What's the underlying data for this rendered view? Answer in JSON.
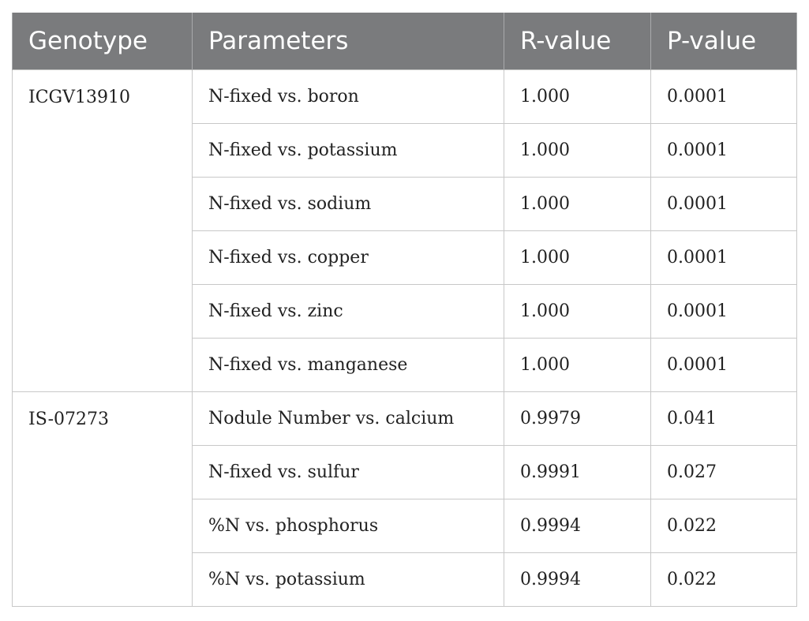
{
  "table": {
    "headers": [
      "Genotype",
      "Parameters",
      "R-value",
      "P-value"
    ],
    "groups": [
      {
        "genotype": "ICGV13910",
        "rows": [
          {
            "parameter": "N-fixed vs. boron",
            "r_value": "1.000",
            "p_value": "0.0001"
          },
          {
            "parameter": "N-fixed vs. potassium",
            "r_value": "1.000",
            "p_value": "0.0001"
          },
          {
            "parameter": "N-fixed vs. sodium",
            "r_value": "1.000",
            "p_value": "0.0001"
          },
          {
            "parameter": "N-fixed vs. copper",
            "r_value": "1.000",
            "p_value": "0.0001"
          },
          {
            "parameter": "N-fixed vs. zinc",
            "r_value": "1.000",
            "p_value": "0.0001"
          },
          {
            "parameter": "N-fixed vs. manganese",
            "r_value": "1.000",
            "p_value": "0.0001"
          }
        ]
      },
      {
        "genotype": "IS-07273",
        "rows": [
          {
            "parameter": "Nodule Number vs. calcium",
            "r_value": "0.9979",
            "p_value": "0.041"
          },
          {
            "parameter": "N-fixed vs. sulfur",
            "r_value": "0.9991",
            "p_value": "0.027"
          },
          {
            "parameter": "%N vs. phosphorus",
            "r_value": "0.9994",
            "p_value": "0.022"
          },
          {
            "parameter": "%N vs. potassium",
            "r_value": "0.9994",
            "p_value": "0.022"
          }
        ]
      }
    ]
  }
}
